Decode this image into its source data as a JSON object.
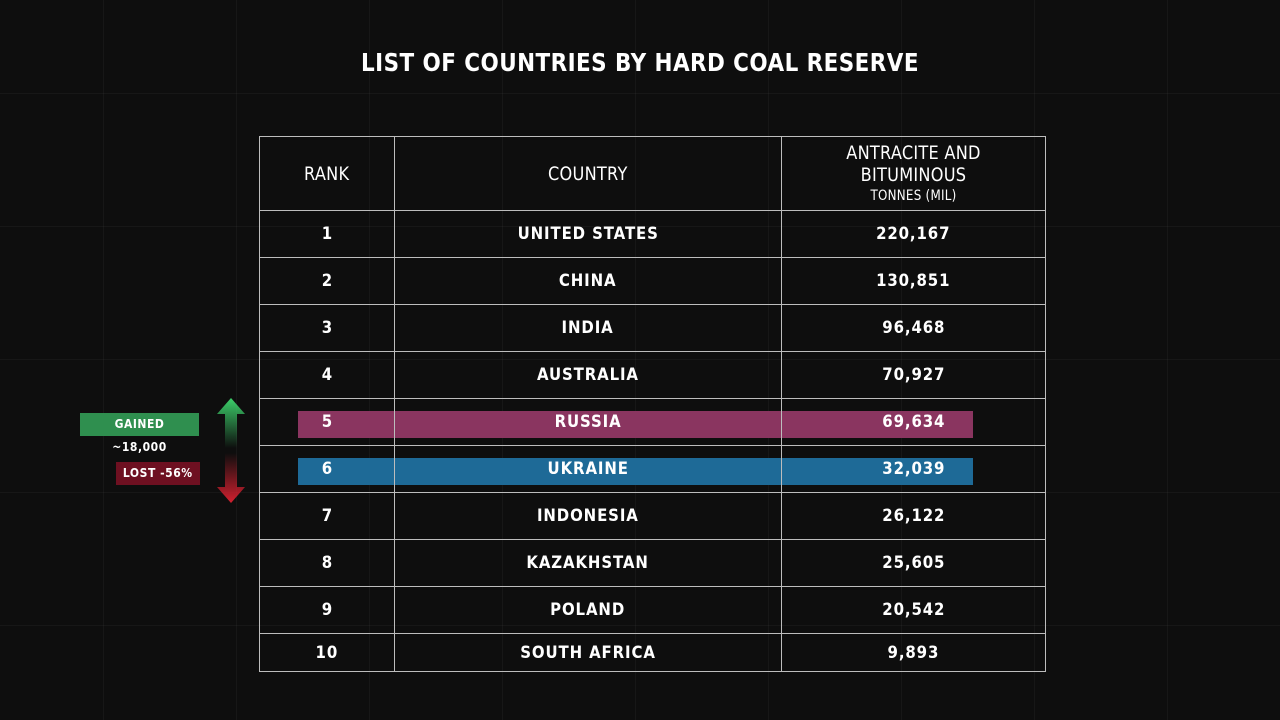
{
  "chart_data": {
    "type": "table",
    "title": "LIST OF COUNTRIES BY HARD COAL RESERVE",
    "columns": [
      "RANK",
      "COUNTRY",
      "ANTRACITE AND BITUMINOUS"
    ],
    "column_subtitle": "TONNES (MIL)",
    "rows": [
      {
        "rank": "1",
        "country": "UNITED STATES",
        "value": "220,167"
      },
      {
        "rank": "2",
        "country": "CHINA",
        "value": "130,851"
      },
      {
        "rank": "3",
        "country": "INDIA",
        "value": "96,468"
      },
      {
        "rank": "4",
        "country": "AUSTRALIA",
        "value": "70,927"
      },
      {
        "rank": "5",
        "country": "RUSSIA",
        "value": "69,634"
      },
      {
        "rank": "6",
        "country": "UKRAINE",
        "value": "32,039"
      },
      {
        "rank": "7",
        "country": "INDONESIA",
        "value": "26,122"
      },
      {
        "rank": "8",
        "country": "KAZAKHSTAN",
        "value": "25,605"
      },
      {
        "rank": "9",
        "country": "POLAND",
        "value": "20,542"
      },
      {
        "rank": "10",
        "country": "SOUTH AFRICA",
        "value": "9,893"
      }
    ],
    "highlights": [
      {
        "rank": "5",
        "color": "#8a3560"
      },
      {
        "rank": "6",
        "color": "#1e6a97"
      }
    ],
    "annotations": [
      {
        "text": "GAINED ~18,000",
        "rank": "5",
        "direction": "up",
        "color": "#2f8f4f"
      },
      {
        "text": "LOST -56%",
        "rank": "6",
        "direction": "down",
        "color": "#6e1021"
      }
    ]
  },
  "colors": {
    "background": "#0e0e0e",
    "grid_line": "#bdbdbd",
    "arrow_up": "#3ccf6a",
    "arrow_down": "#d4202f"
  },
  "icons": {
    "gain_arrow": "arrow-up-icon",
    "loss_arrow": "arrow-down-icon"
  }
}
